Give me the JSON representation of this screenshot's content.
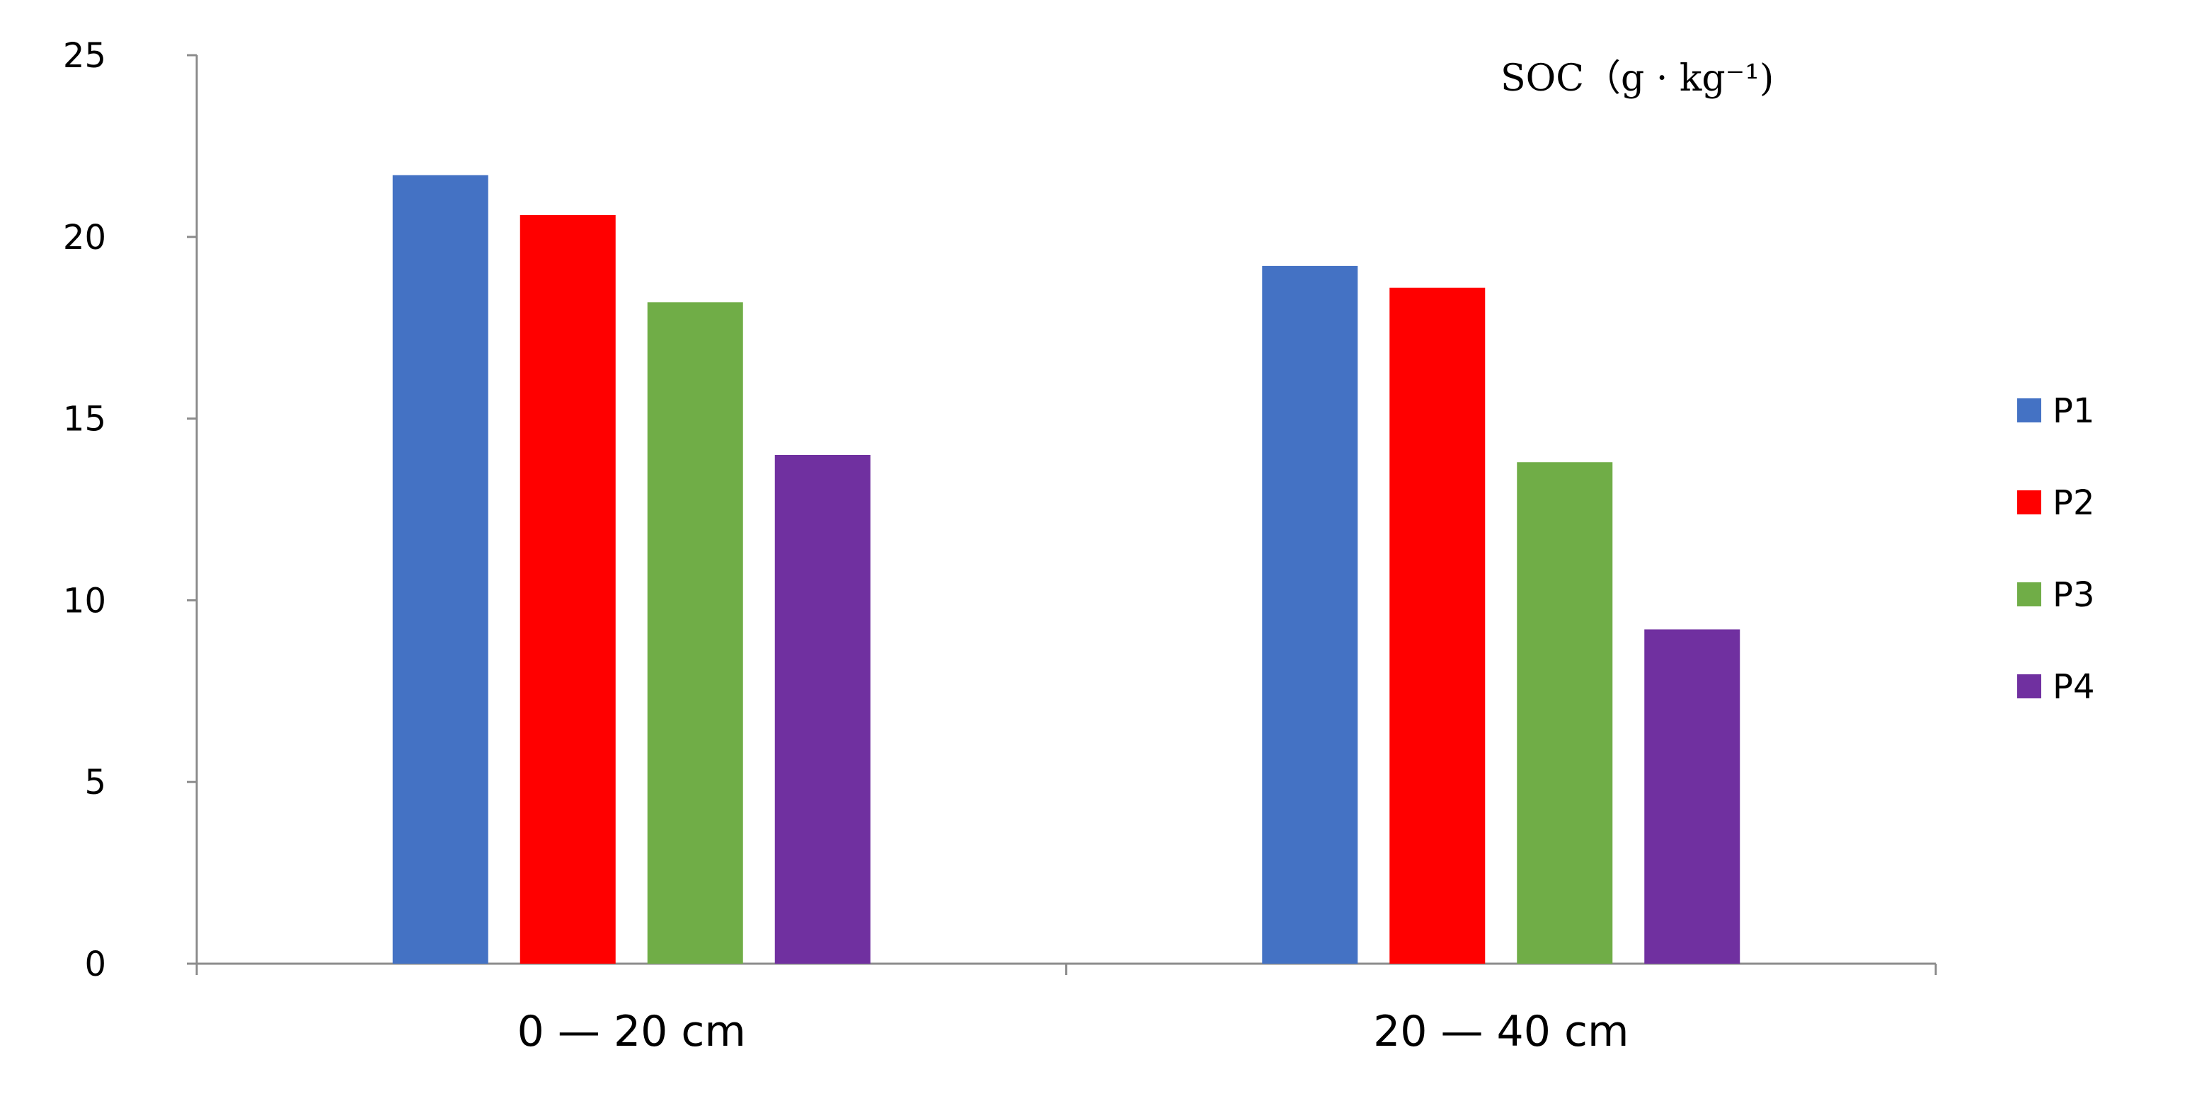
{
  "chart_data": {
    "type": "bar",
    "categories": [
      "0 — 20 cm",
      "20 — 40 cm"
    ],
    "series": [
      {
        "name": "P1",
        "color": "#4472C4",
        "values": [
          21.7,
          19.2
        ]
      },
      {
        "name": "P2",
        "color": "#FF0000",
        "values": [
          20.6,
          18.6
        ]
      },
      {
        "name": "P3",
        "color": "#70AD47",
        "values": [
          18.2,
          13.8
        ]
      },
      {
        "name": "P4",
        "color": "#7030A0",
        "values": [
          14.0,
          9.2
        ]
      }
    ],
    "ylabel": "SOC（g · kg⁻¹)",
    "ylim": [
      0,
      25
    ],
    "yticks": [
      0,
      5,
      10,
      15,
      20,
      25
    ],
    "grid": false,
    "legend_position": "right"
  }
}
